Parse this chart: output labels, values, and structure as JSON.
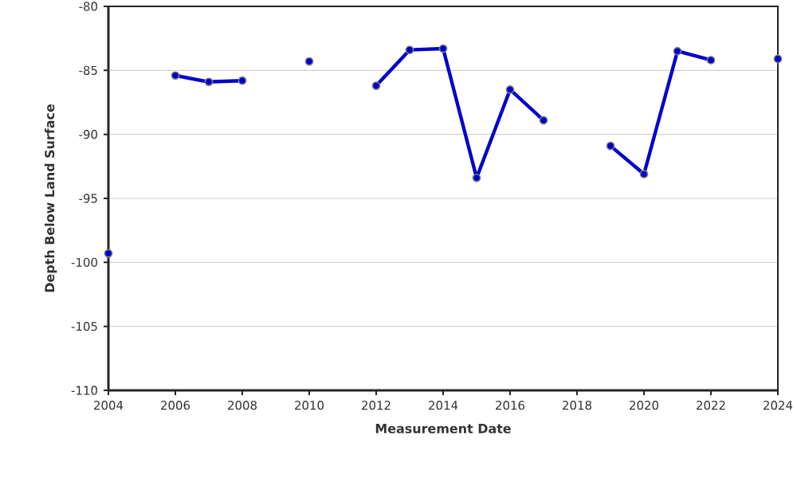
{
  "chart_data": {
    "type": "line",
    "xlabel": "Measurement Date",
    "ylabel": "Depth Below Land Surface",
    "x": [
      2004,
      2005,
      2006,
      2007,
      2008,
      2009,
      2010,
      2011,
      2012,
      2013,
      2014,
      2015,
      2016,
      2017,
      2018,
      2019,
      2020,
      2021,
      2022,
      2023,
      2024
    ],
    "series": [
      {
        "color": "#0000cc",
        "values": [
          -99.3,
          null,
          -85.4,
          -85.9,
          -85.8,
          null,
          -84.3,
          null,
          -86.2,
          -83.4,
          -83.3,
          -93.4,
          -86.5,
          -88.9,
          null,
          -90.9,
          -93.1,
          -83.5,
          -84.2,
          null,
          -84.1
        ]
      }
    ],
    "xlim": [
      2004,
      2024
    ],
    "ylim": [
      -110,
      -80
    ],
    "xticks": [
      2004,
      2006,
      2008,
      2010,
      2012,
      2014,
      2016,
      2018,
      2020,
      2022,
      2024
    ],
    "yticks": [
      -110,
      -105,
      -100,
      -95,
      -90,
      -85,
      -80
    ],
    "grid": "y",
    "marker": "circle",
    "line_style": "solid"
  }
}
